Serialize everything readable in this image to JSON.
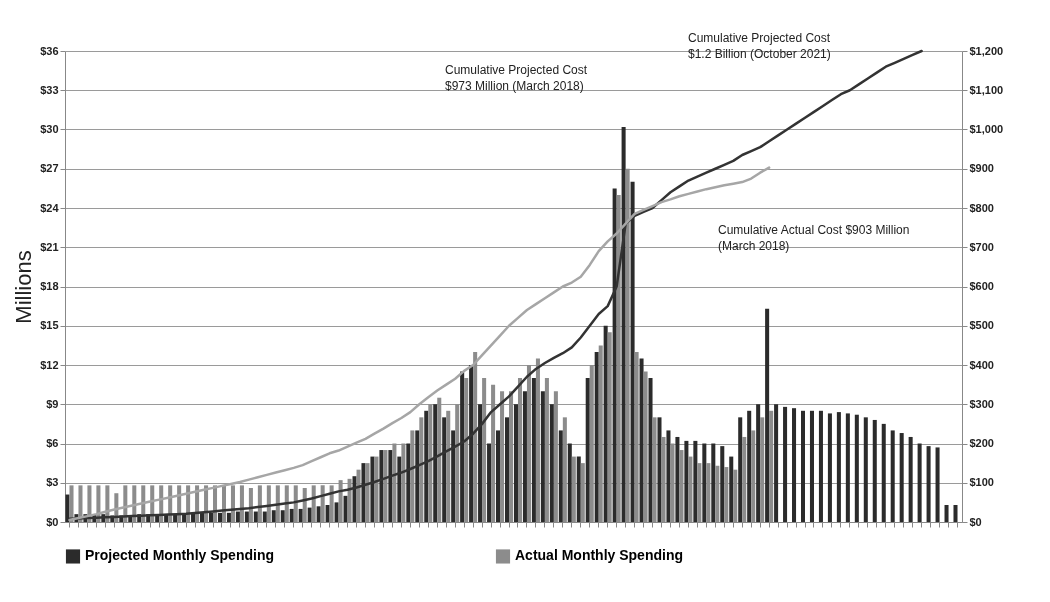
{
  "chart_data": {
    "type": "bar",
    "ylabel": "Millions",
    "categories": [
      null,
      null,
      null,
      null,
      null,
      null,
      null,
      null,
      null,
      null,
      null,
      null,
      null,
      null,
      null,
      null,
      null,
      null,
      null,
      null,
      null,
      null,
      null,
      null,
      null,
      null,
      null,
      null,
      null,
      null,
      null,
      null,
      null,
      null,
      null,
      null,
      null,
      null,
      null,
      null,
      null,
      null,
      null,
      null,
      null,
      null,
      null,
      null,
      null,
      null,
      null,
      null,
      null,
      null,
      null,
      null,
      null,
      null,
      null,
      null,
      null,
      null,
      null,
      null,
      null,
      null,
      null,
      null,
      null,
      null,
      null,
      null,
      null,
      null,
      null,
      null,
      null,
      null,
      null,
      null,
      null,
      null,
      null,
      null,
      null,
      null,
      null,
      null,
      null,
      null,
      null,
      null,
      null,
      null,
      null,
      null,
      null,
      null,
      null,
      null
    ],
    "series": [
      {
        "name": "Projected Monthly Spending",
        "color": "#2b2b2b",
        "values": [
          2.1,
          0.6,
          0.6,
          0.6,
          0.6,
          0.5,
          0.5,
          0.5,
          0.6,
          0.6,
          0.6,
          0.6,
          0.6,
          0.6,
          0.7,
          0.7,
          0.7,
          0.7,
          0.7,
          0.8,
          0.8,
          0.8,
          0.8,
          0.9,
          0.9,
          1,
          1,
          1.1,
          1.2,
          1.3,
          1.5,
          2,
          3.5,
          4.5,
          5,
          5.5,
          5.5,
          5,
          6,
          7,
          8.5,
          9,
          8,
          7,
          11.5,
          12,
          9,
          6,
          7,
          8,
          9,
          10,
          11,
          10,
          9,
          7,
          6,
          5,
          11,
          13,
          15,
          25.5,
          30.2,
          26,
          12.5,
          11,
          8,
          7,
          6.5,
          6.2,
          6.2,
          6,
          6,
          5.8,
          5,
          8,
          8.5,
          9,
          16.3,
          9,
          8.8,
          8.7,
          8.5,
          8.5,
          8.5,
          8.3,
          8.4,
          8.3,
          8.2,
          8,
          7.8,
          7.5,
          7,
          6.8,
          6.5,
          6,
          5.8,
          5.7,
          1.3,
          1.3
        ]
      },
      {
        "name": "Actual Monthly Spending",
        "color": "#8c8c8c",
        "values": [
          2.8,
          2.8,
          2.8,
          2.8,
          2.8,
          2.2,
          2.8,
          2.8,
          2.8,
          2.8,
          2.8,
          2.8,
          2.8,
          2.8,
          2.8,
          2.8,
          2.8,
          2.8,
          2.8,
          2.8,
          2.6,
          2.8,
          2.8,
          2.8,
          2.8,
          2.8,
          2.6,
          2.8,
          2.8,
          2.8,
          3.2,
          3.3,
          4,
          4.5,
          5,
          5.5,
          6,
          6,
          7,
          8,
          9,
          9.5,
          8.5,
          9,
          11,
          13,
          11,
          10.5,
          10,
          10,
          11,
          12,
          12.5,
          11,
          10,
          8,
          5,
          4.5,
          12,
          13.5,
          14.5,
          25,
          27,
          13,
          11.5,
          8,
          6.5,
          6,
          5.5,
          5,
          4.5,
          4.5,
          4.3,
          4.2,
          4,
          6.5,
          7,
          8,
          8.5,
          null,
          null,
          null,
          null,
          null,
          null,
          null,
          null,
          null,
          null,
          null,
          null,
          null,
          null,
          null,
          null,
          null,
          null,
          null,
          null,
          null
        ]
      },
      {
        "type": "line",
        "axis": "y2",
        "color": "#333333",
        "values": [
          8,
          9,
          10,
          11,
          12,
          13,
          14,
          15,
          16,
          17,
          18,
          19,
          20,
          21,
          23,
          25,
          27,
          29,
          31,
          33,
          35,
          38,
          41,
          44,
          47,
          50,
          55,
          60,
          66,
          72,
          78,
          82,
          88,
          95,
          102,
          110,
          118,
          126,
          135,
          145,
          155,
          167,
          180,
          192,
          205,
          225,
          250,
          280,
          300,
          320,
          345,
          370,
          390,
          405,
          418,
          430,
          445,
          470,
          500,
          530,
          550,
          600,
          760,
          780,
          790,
          800,
          820,
          840,
          855,
          870,
          880,
          890,
          900,
          910,
          920,
          935,
          945,
          955,
          970,
          985,
          1000,
          1015,
          1030,
          1045,
          1060,
          1075,
          1090,
          1100,
          1115,
          1130,
          1145,
          1160,
          1170,
          1180,
          1190,
          1200,
          null,
          null,
          null,
          null
        ]
      },
      {
        "type": "line",
        "axis": "y2",
        "color": "#a6a6a6",
        "values": [
          5,
          10,
          15,
          20,
          26,
          32,
          37,
          42,
          47,
          52,
          57,
          62,
          67,
          72,
          77,
          82,
          87,
          92,
          97,
          102,
          108,
          114,
          120,
          126,
          132,
          138,
          145,
          155,
          165,
          175,
          182,
          192,
          202,
          212,
          225,
          238,
          252,
          265,
          280,
          300,
          318,
          335,
          350,
          365,
          385,
          400,
          425,
          450,
          475,
          500,
          520,
          540,
          555,
          570,
          585,
          600,
          610,
          625,
          655,
          690,
          715,
          735,
          760,
          785,
          795,
          805,
          815,
          822,
          830,
          836,
          842,
          848,
          853,
          858,
          862,
          866,
          875,
          890,
          903,
          null,
          null,
          null,
          null,
          null,
          null,
          null,
          null,
          null,
          null,
          null,
          null,
          null,
          null,
          null,
          null,
          null,
          null,
          null,
          null,
          null
        ]
      }
    ],
    "ylim": [
      0,
      36
    ],
    "yticks": [
      {
        "value": 0,
        "label": "$0"
      },
      {
        "value": 3,
        "label": "$3"
      },
      {
        "value": 6,
        "label": "$6"
      },
      {
        "value": 9,
        "label": "$9"
      },
      {
        "value": 12,
        "label": "$12"
      },
      {
        "value": 15,
        "label": "$15"
      },
      {
        "value": 18,
        "label": "$18"
      },
      {
        "value": 21,
        "label": "$21"
      },
      {
        "value": 24,
        "label": "$24"
      },
      {
        "value": 27,
        "label": "$27"
      },
      {
        "value": 30,
        "label": "$30"
      },
      {
        "value": 33,
        "label": "$33"
      },
      {
        "value": 36,
        "label": "$36"
      }
    ],
    "y2lim": [
      0,
      1200
    ],
    "y2ticks": [
      {
        "value": 0,
        "label": "$0"
      },
      {
        "value": 100,
        "label": "$100"
      },
      {
        "value": 200,
        "label": "$200"
      },
      {
        "value": 300,
        "label": "$300"
      },
      {
        "value": 400,
        "label": "$400"
      },
      {
        "value": 500,
        "label": "$500"
      },
      {
        "value": 600,
        "label": "$600"
      },
      {
        "value": 700,
        "label": "$700"
      },
      {
        "value": 800,
        "label": "$800"
      },
      {
        "value": 900,
        "label": "$900"
      },
      {
        "value": 1000,
        "label": "$1,000"
      },
      {
        "value": 1100,
        "label": "$1,100"
      },
      {
        "value": 1200,
        "label": "$1,200"
      }
    ],
    "grid": "y",
    "legend": "bottom",
    "annotations": [
      "Cumulative Projected Cost\n$973 Million (March 2018)",
      "Cumulative Projected Cost\n$1.2 Billion (October 2021)",
      "Cumulative Actual Cost $903 Million\n(March 2018)"
    ]
  }
}
